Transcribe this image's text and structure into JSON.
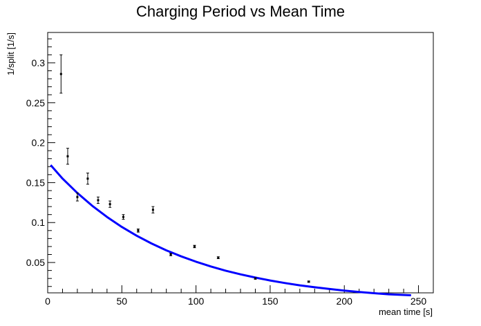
{
  "chart_data": {
    "type": "scatter",
    "title": "Charging Period vs Mean Time",
    "xlabel": "mean time [s]",
    "ylabel": "1/split [1/s]",
    "xlim": [
      0,
      260
    ],
    "ylim": [
      0.012,
      0.338
    ],
    "grid": false,
    "legend": "none",
    "xticks": [
      0,
      50,
      100,
      150,
      200,
      250
    ],
    "xtick_labels": [
      "0",
      "50",
      "100",
      "150",
      "200",
      "250"
    ],
    "yticks": [
      0.05,
      0.1,
      0.15,
      0.2,
      0.25,
      0.3
    ],
    "ytick_labels": [
      "0.05",
      "0.1",
      "0.15",
      "0.2",
      "0.25",
      "0.3"
    ],
    "series": [
      {
        "type": "scatter-errorbars",
        "color": "#000000",
        "points": [
          {
            "x": 9,
            "y": 0.286,
            "err": 0.024
          },
          {
            "x": 13.5,
            "y": 0.183,
            "err": 0.01
          },
          {
            "x": 20,
            "y": 0.132,
            "err": 0.005
          },
          {
            "x": 27,
            "y": 0.155,
            "err": 0.007
          },
          {
            "x": 34,
            "y": 0.128,
            "err": 0.004
          },
          {
            "x": 42,
            "y": 0.123,
            "err": 0.004
          },
          {
            "x": 51,
            "y": 0.107,
            "err": 0.003
          },
          {
            "x": 61,
            "y": 0.09,
            "err": 0.002
          },
          {
            "x": 71,
            "y": 0.116,
            "err": 0.004
          },
          {
            "x": 83,
            "y": 0.06,
            "err": 0.0015
          },
          {
            "x": 99,
            "y": 0.07,
            "err": 0.0015
          },
          {
            "x": 115,
            "y": 0.056,
            "err": 0.0012
          },
          {
            "x": 140,
            "y": 0.03,
            "err": 0.001
          },
          {
            "x": 176,
            "y": 0.026,
            "err": 0.0008
          }
        ]
      },
      {
        "type": "line",
        "color": "#0000ff",
        "function": "exponential-fit",
        "x": [
          2,
          10,
          20,
          30,
          40,
          50,
          60,
          70,
          80,
          90,
          100,
          110,
          120,
          130,
          140,
          150,
          160,
          170,
          180,
          190,
          200,
          210,
          220,
          230,
          245
        ],
        "y": [
          0.172,
          0.155,
          0.137,
          0.121,
          0.107,
          0.0945,
          0.0835,
          0.0738,
          0.0652,
          0.0577,
          0.051,
          0.045,
          0.0398,
          0.0352,
          0.0311,
          0.0275,
          0.0243,
          0.0214,
          0.019,
          0.0168,
          0.0148,
          0.0131,
          0.0116,
          0.0102,
          0.009
        ]
      }
    ]
  }
}
